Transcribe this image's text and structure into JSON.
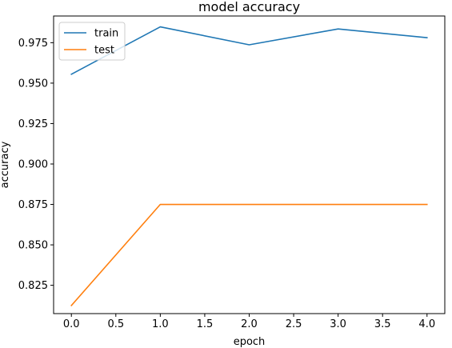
{
  "chart_data": {
    "type": "line",
    "title": "model accuracy",
    "xlabel": "epoch",
    "ylabel": "accuracy",
    "x": [
      0,
      1,
      2,
      3,
      4
    ],
    "xlim": [
      -0.2,
      4.2
    ],
    "ylim": [
      0.8075,
      0.9915
    ],
    "xticks": [
      0.0,
      0.5,
      1.0,
      1.5,
      2.0,
      2.5,
      3.0,
      3.5,
      4.0
    ],
    "xtick_labels": [
      "0.0",
      "0.5",
      "1.0",
      "1.5",
      "2.0",
      "2.5",
      "3.0",
      "3.5",
      "4.0"
    ],
    "yticks": [
      0.825,
      0.85,
      0.875,
      0.9,
      0.925,
      0.95,
      0.975
    ],
    "ytick_labels": [
      "0.825",
      "0.850",
      "0.875",
      "0.900",
      "0.925",
      "0.950",
      "0.975"
    ],
    "grid": false,
    "legend_position": "top-left",
    "series": [
      {
        "name": "train",
        "color": "#1f77b4",
        "values": [
          0.9555,
          0.9848,
          0.9737,
          0.9835,
          0.9781
        ]
      },
      {
        "name": "test",
        "color": "#ff7f0e",
        "values": [
          0.8125,
          0.875,
          0.875,
          0.875,
          0.875
        ]
      }
    ]
  }
}
